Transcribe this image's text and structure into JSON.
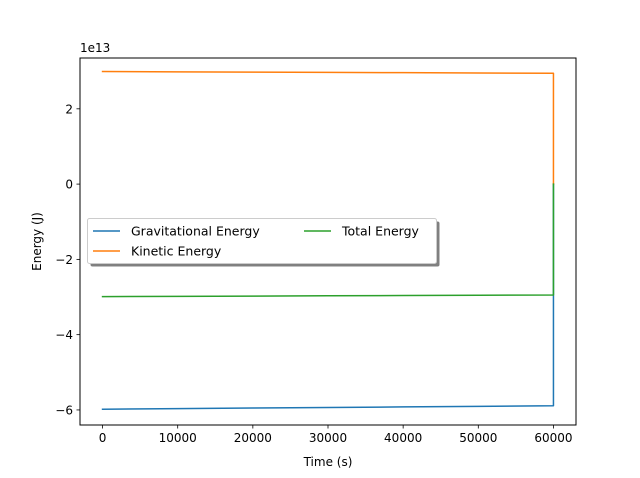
{
  "chart_data": {
    "type": "line",
    "xlabel": "Time (s)",
    "ylabel": "Energy (J)",
    "offset_label": "1e13",
    "xlim": [
      -3000,
      63000
    ],
    "ylim": [
      -6.4,
      3.35
    ],
    "y_multiplier": 10000000000000.0,
    "x_ticks": [
      0,
      10000,
      20000,
      30000,
      40000,
      50000,
      60000
    ],
    "x_tick_labels": [
      "0",
      "10000",
      "20000",
      "30000",
      "40000",
      "50000",
      "60000"
    ],
    "y_ticks": [
      -6,
      -4,
      -2,
      0,
      2
    ],
    "y_tick_labels": [
      "−6",
      "−4",
      "−2",
      "0",
      "2"
    ],
    "grid": false,
    "legend_placement": "center-left",
    "series": [
      {
        "name": "Gravitational Energy",
        "color": "#1f77b4",
        "x": [
          0,
          10000,
          20000,
          30000,
          40000,
          50000,
          59999,
          60000
        ],
        "y": [
          -5.98,
          -5.965,
          -5.95,
          -5.935,
          -5.92,
          -5.905,
          -5.89,
          0
        ]
      },
      {
        "name": "Kinetic Energy",
        "color": "#ff7f0e",
        "x": [
          0,
          10000,
          20000,
          30000,
          40000,
          50000,
          59999,
          60000
        ],
        "y": [
          2.99,
          2.982,
          2.975,
          2.967,
          2.96,
          2.952,
          2.945,
          0
        ]
      },
      {
        "name": "Total Energy",
        "color": "#2ca02c",
        "x": [
          0,
          10000,
          20000,
          30000,
          40000,
          50000,
          59999,
          60000
        ],
        "y": [
          -2.99,
          -2.982,
          -2.975,
          -2.967,
          -2.96,
          -2.952,
          -2.945,
          0
        ]
      }
    ]
  }
}
